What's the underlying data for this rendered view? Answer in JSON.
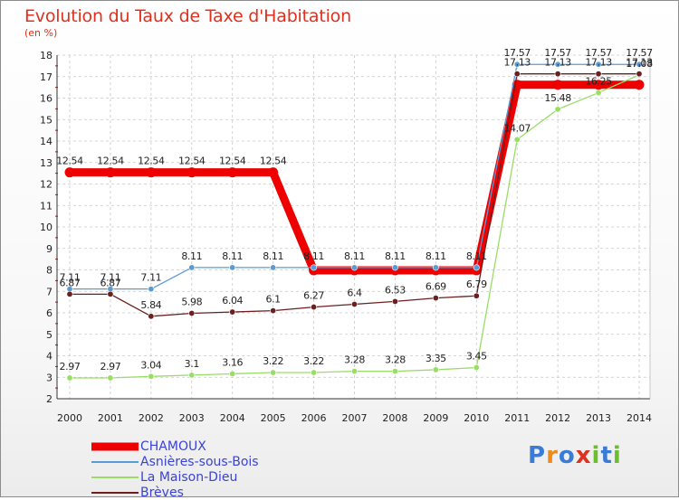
{
  "title": "Evolution du Taux de Taxe d'Habitation",
  "unit": "(en %)",
  "brand": "Proxiti",
  "colors": {
    "title": "#e0301e",
    "legend_text": "#3a43d6",
    "grid": "#c8c8c8",
    "axis_text": "#222222"
  },
  "chart_data": {
    "type": "line",
    "title": "Evolution du Taux de Taxe d'Habitation",
    "ylabel": "(en %)",
    "xlabel": "",
    "ylim": [
      2,
      18
    ],
    "yticks": [
      2,
      3,
      4,
      5,
      6,
      7,
      8,
      9,
      10,
      11,
      12,
      13,
      14,
      15,
      16,
      17,
      18
    ],
    "grid": true,
    "legend_position": "bottom-left",
    "x": [
      "2000",
      "2001",
      "2002",
      "2003",
      "2004",
      "2005",
      "2006",
      "2007",
      "2008",
      "2009",
      "2010",
      "2011",
      "2012",
      "2013",
      "2014"
    ],
    "series": [
      {
        "name": "CHAMOUX",
        "color": "#ee0000",
        "values": [
          12.54,
          12.54,
          12.54,
          12.54,
          12.54,
          12.54,
          7.98,
          7.98,
          7.98,
          7.98,
          7.98,
          16.62,
          16.62,
          16.62,
          16.62
        ],
        "labels": [
          "12.54",
          "12.54",
          "12.54",
          "12.54",
          "12.54",
          "12.54",
          "",
          "",
          "",
          "",
          "",
          "",
          "",
          "",
          ""
        ]
      },
      {
        "name": "Asnières-sous-Bois",
        "color": "#5b9bd5",
        "values": [
          7.11,
          7.11,
          7.11,
          8.11,
          8.11,
          8.11,
          8.11,
          8.11,
          8.11,
          8.11,
          8.11,
          17.57,
          17.57,
          17.57,
          17.57
        ],
        "labels": [
          "7.11",
          "7.11",
          "7.11",
          "8.11",
          "8.11",
          "8.11",
          "8.11",
          "8.11",
          "8.11",
          "8.11",
          "8.11",
          "17.57",
          "17.57",
          "17.57",
          "17.57"
        ]
      },
      {
        "name": "La Maison-Dieu",
        "color": "#99dd66",
        "values": [
          2.97,
          2.97,
          3.04,
          3.1,
          3.16,
          3.22,
          3.22,
          3.28,
          3.28,
          3.35,
          3.45,
          14.07,
          15.48,
          16.25,
          17.08
        ],
        "labels": [
          "2.97",
          "2.97",
          "3.04",
          "3.1",
          "3.16",
          "3.22",
          "3.22",
          "3.28",
          "3.28",
          "3.35",
          "3.45",
          "14.07",
          "15.48",
          "16.25",
          "17.08"
        ]
      },
      {
        "name": "Brèves",
        "color": "#6b1f1f",
        "values": [
          6.87,
          6.87,
          5.84,
          5.98,
          6.04,
          6.1,
          6.27,
          6.4,
          6.53,
          6.69,
          6.79,
          17.13,
          17.13,
          17.13,
          17.13
        ],
        "labels": [
          "6.87",
          "6.87",
          "5.84",
          "5.98",
          "6.04",
          "6.1",
          "6.27",
          "6.4",
          "6.53",
          "6.69",
          "6.79",
          "17.13",
          "17.13",
          "17.13",
          "17.13"
        ]
      }
    ]
  }
}
